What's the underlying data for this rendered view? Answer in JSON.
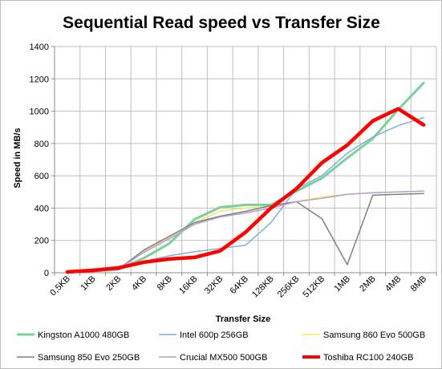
{
  "chart_data": {
    "type": "line",
    "title": "Sequential Read speed vs Transfer Size",
    "xlabel": "Transfer Size",
    "ylabel": "Speed in MB/s",
    "ylim": [
      0,
      1400
    ],
    "yticks": [
      0,
      200,
      400,
      600,
      800,
      1000,
      1200,
      1400
    ],
    "categories": [
      "0,5KB",
      "1KB",
      "2KB",
      "4KB",
      "8KB",
      "16KB",
      "32KB",
      "64KB",
      "128KB",
      "256KB",
      "512KB",
      "1MB",
      "2MB",
      "4MB",
      "8MB"
    ],
    "grid": true,
    "legend_position": "bottom",
    "series": [
      {
        "name": "Kingston A1000 480GB",
        "color": "#7bd19c",
        "width": 3,
        "values": [
          5,
          10,
          20,
          90,
          180,
          330,
          405,
          420,
          420,
          505,
          585,
          710,
          830,
          1010,
          1175
        ]
      },
      {
        "name": "Intel 600p 256GB",
        "color": "#7fb0dc",
        "width": 1.5,
        "values": [
          5,
          10,
          20,
          70,
          105,
          130,
          150,
          170,
          310,
          520,
          600,
          740,
          840,
          910,
          960
        ]
      },
      {
        "name": "Samsung 860 Evo 500GB",
        "color": "#f5ea62",
        "width": 1.5,
        "values": [
          5,
          10,
          20,
          130,
          220,
          310,
          380,
          400,
          410,
          440,
          470,
          485,
          495,
          500,
          505
        ]
      },
      {
        "name": "Samsung 850 Evo 250GB",
        "color": "#808080",
        "width": 1.5,
        "values": [
          5,
          10,
          20,
          140,
          225,
          310,
          350,
          380,
          415,
          440,
          335,
          50,
          480,
          485,
          490
        ]
      },
      {
        "name": "Crucial MX500 500GB",
        "color": "#b39ed8",
        "width": 1.5,
        "values": [
          5,
          10,
          20,
          125,
          210,
          300,
          345,
          370,
          400,
          440,
          460,
          485,
          495,
          500,
          505
        ]
      },
      {
        "name": "Toshiba RC100 240GB",
        "color": "#ff0000",
        "width": 4.5,
        "values": [
          5,
          15,
          30,
          65,
          85,
          95,
          135,
          250,
          400,
          520,
          680,
          790,
          940,
          1015,
          915
        ]
      }
    ]
  }
}
